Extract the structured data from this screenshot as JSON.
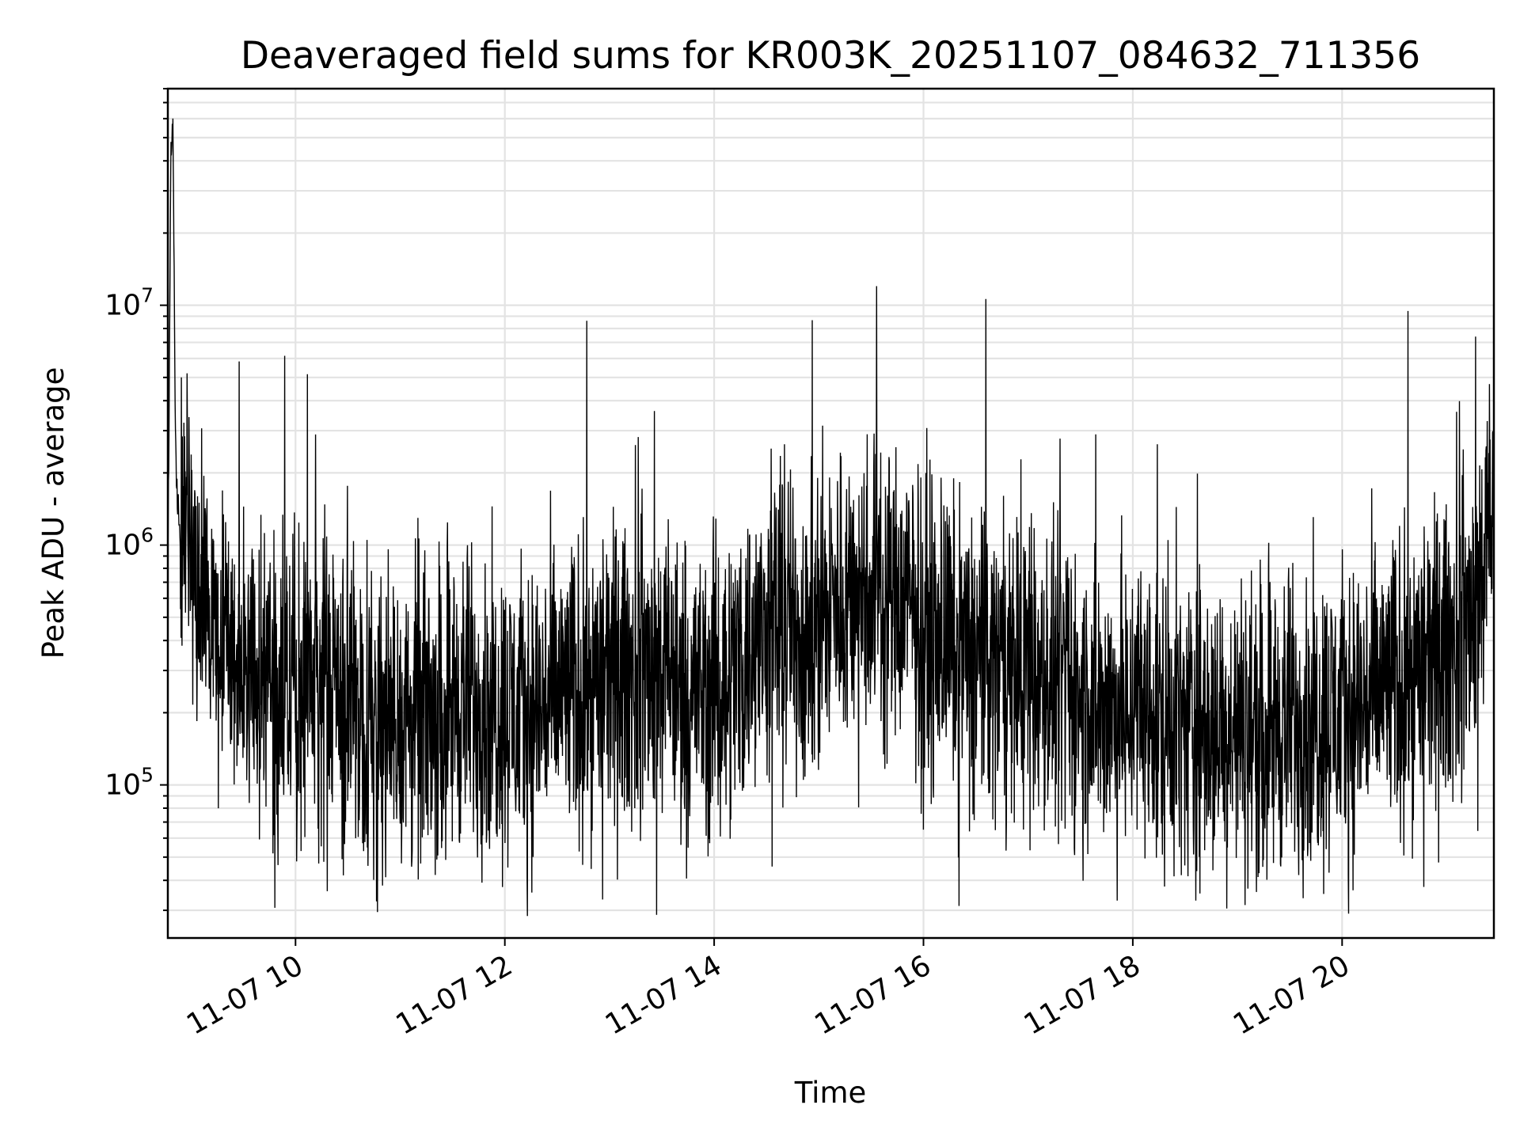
{
  "chart_data": {
    "type": "line",
    "title": "Deaveraged field sums for KR003K_20251107_084632_711356",
    "xlabel": "Time",
    "ylabel": "Peak ADU - average",
    "x_unit": "hours (2025-11-07)",
    "xlim": [
      8.78,
      21.45
    ],
    "y_scale": "log",
    "ylim": [
      23000,
      80000000
    ],
    "grid": true,
    "line_color": "#000000",
    "x_ticks": [
      {
        "value": 10,
        "label": "11-07 10"
      },
      {
        "value": 12,
        "label": "11-07 12"
      },
      {
        "value": 14,
        "label": "11-07 14"
      },
      {
        "value": 16,
        "label": "11-07 16"
      },
      {
        "value": 18,
        "label": "11-07 18"
      },
      {
        "value": 20,
        "label": "11-07 20"
      }
    ],
    "y_ticks": [
      {
        "value": 100000,
        "base": "10",
        "exp": "5"
      },
      {
        "value": 1000000,
        "base": "10",
        "exp": "6"
      },
      {
        "value": 10000000,
        "base": "10",
        "exp": "7"
      }
    ],
    "series": [
      {
        "name": "Peak ADU - average",
        "x": [
          8.78,
          8.81,
          8.83,
          8.85,
          8.87,
          8.9,
          9.0,
          9.2,
          9.4,
          9.6,
          9.8,
          10.0,
          10.2,
          10.5,
          10.8,
          11.0,
          11.3,
          11.6,
          11.9,
          12.2,
          12.5,
          12.8,
          13.1,
          13.4,
          13.7,
          14.0,
          14.3,
          14.6,
          14.9,
          15.2,
          15.5,
          15.8,
          16.1,
          16.4,
          16.7,
          17.0,
          17.3,
          17.6,
          17.9,
          18.2,
          18.5,
          18.8,
          19.1,
          19.4,
          19.7,
          20.0,
          20.3,
          20.6,
          20.9,
          21.2,
          21.45
        ],
        "y": [
          700000,
          45000000,
          55000000,
          3000000,
          1600000,
          1100000,
          900000,
          400000,
          320000,
          280000,
          300000,
          240000,
          260000,
          220000,
          190000,
          180000,
          200000,
          230000,
          210000,
          200000,
          230000,
          260000,
          280000,
          300000,
          260000,
          240000,
          350000,
          480000,
          420000,
          600000,
          700000,
          600000,
          420000,
          360000,
          320000,
          280000,
          250000,
          220000,
          200000,
          190000,
          180000,
          170000,
          170000,
          180000,
          190000,
          200000,
          230000,
          280000,
          320000,
          450000,
          1200000
        ]
      }
    ]
  }
}
